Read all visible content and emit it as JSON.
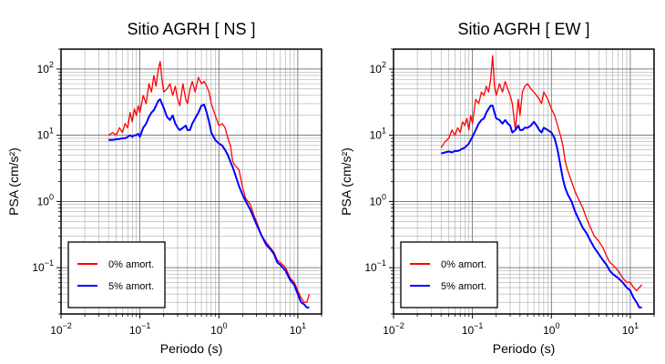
{
  "chart_data": [
    {
      "type": "line",
      "title": "Sitio AGRH [ NS ]",
      "xlabel": "Periodo (s)",
      "ylabel": "PSA (cm/s²)",
      "xscale": "log",
      "yscale": "log",
      "xlim": [
        0.01,
        20
      ],
      "ylim": [
        0.02,
        200
      ],
      "grid": true,
      "legend_position": "bottom-left",
      "x_ticks": [
        {
          "value": 0.01,
          "base": "10",
          "exp": "−2"
        },
        {
          "value": 0.1,
          "base": "10",
          "exp": "−1"
        },
        {
          "value": 1,
          "base": "10",
          "exp": "0"
        },
        {
          "value": 10,
          "base": "10",
          "exp": "1"
        }
      ],
      "y_ticks": [
        {
          "value": 0.1,
          "base": "10",
          "exp": "−1"
        },
        {
          "value": 1,
          "base": "10",
          "exp": "0"
        },
        {
          "value": 10,
          "base": "10",
          "exp": "1"
        },
        {
          "value": 100,
          "base": "10",
          "exp": "2"
        }
      ],
      "series": [
        {
          "name": "0% amort.",
          "color": "#ff0000",
          "x": [
            0.04,
            0.045,
            0.05,
            0.055,
            0.06,
            0.065,
            0.07,
            0.075,
            0.08,
            0.085,
            0.09,
            0.095,
            0.1,
            0.11,
            0.12,
            0.13,
            0.14,
            0.15,
            0.16,
            0.17,
            0.18,
            0.19,
            0.2,
            0.22,
            0.24,
            0.26,
            0.28,
            0.3,
            0.32,
            0.35,
            0.38,
            0.4,
            0.43,
            0.46,
            0.5,
            0.55,
            0.6,
            0.65,
            0.7,
            0.75,
            0.8,
            0.9,
            1.0,
            1.1,
            1.2,
            1.3,
            1.4,
            1.5,
            1.6,
            1.8,
            2.0,
            2.2,
            2.5,
            2.8,
            3.0,
            3.5,
            4.0,
            4.5,
            5.0,
            5.5,
            6.0,
            7.0,
            8.0,
            9.0,
            10.0,
            11.0,
            12.0,
            13.0,
            14.0
          ],
          "y": [
            10,
            11,
            10,
            13,
            11,
            15,
            13,
            22,
            16,
            25,
            20,
            28,
            22,
            40,
            30,
            60,
            45,
            80,
            55,
            95,
            130,
            70,
            45,
            50,
            60,
            40,
            55,
            35,
            28,
            60,
            35,
            30,
            50,
            65,
            45,
            75,
            60,
            65,
            55,
            45,
            30,
            20,
            14,
            15,
            13,
            9,
            7,
            4,
            3.5,
            3,
            1.6,
            1.1,
            0.9,
            0.6,
            0.5,
            0.3,
            0.24,
            0.2,
            0.17,
            0.13,
            0.12,
            0.1,
            0.07,
            0.06,
            0.045,
            0.035,
            0.03,
            0.03,
            0.04
          ]
        },
        {
          "name": "5% amort.",
          "color": "#0000ff",
          "x": [
            0.04,
            0.045,
            0.05,
            0.055,
            0.06,
            0.065,
            0.07,
            0.075,
            0.08,
            0.085,
            0.09,
            0.095,
            0.1,
            0.11,
            0.12,
            0.13,
            0.14,
            0.15,
            0.16,
            0.17,
            0.18,
            0.19,
            0.2,
            0.22,
            0.24,
            0.26,
            0.28,
            0.3,
            0.32,
            0.35,
            0.38,
            0.4,
            0.43,
            0.46,
            0.5,
            0.55,
            0.6,
            0.65,
            0.7,
            0.75,
            0.8,
            0.9,
            1.0,
            1.1,
            1.2,
            1.3,
            1.4,
            1.5,
            1.6,
            1.8,
            2.0,
            2.2,
            2.5,
            2.8,
            3.0,
            3.5,
            4.0,
            4.5,
            5.0,
            5.5,
            6.0,
            7.0,
            8.0,
            9.0,
            10.0,
            11.0,
            12.0,
            13.0,
            14.0
          ],
          "y": [
            8.5,
            8.5,
            8.7,
            8.8,
            9,
            9,
            9.5,
            10,
            9.5,
            10,
            10,
            10.5,
            9.5,
            13,
            15,
            19,
            22,
            24,
            28,
            33,
            35,
            30,
            26,
            19,
            17,
            20,
            15,
            13,
            12,
            13,
            14,
            12,
            12,
            15,
            18,
            22,
            28,
            29,
            22,
            16,
            11,
            8.5,
            7.5,
            7,
            6,
            5,
            4,
            3.3,
            2.6,
            1.7,
            1.25,
            1.0,
            0.75,
            0.55,
            0.45,
            0.3,
            0.22,
            0.19,
            0.16,
            0.12,
            0.11,
            0.09,
            0.065,
            0.055,
            0.04,
            0.03,
            0.028,
            0.025,
            0.025
          ]
        }
      ]
    },
    {
      "type": "line",
      "title": "Sitio AGRH [ EW ]",
      "xlabel": "Periodo (s)",
      "ylabel": "PSA (cm/s²)",
      "xscale": "log",
      "yscale": "log",
      "xlim": [
        0.01,
        20
      ],
      "ylim": [
        0.02,
        200
      ],
      "grid": true,
      "legend_position": "bottom-left",
      "x_ticks": [
        {
          "value": 0.01,
          "base": "10",
          "exp": "−2"
        },
        {
          "value": 0.1,
          "base": "10",
          "exp": "−1"
        },
        {
          "value": 1,
          "base": "10",
          "exp": "0"
        },
        {
          "value": 10,
          "base": "10",
          "exp": "1"
        }
      ],
      "y_ticks": [
        {
          "value": 0.1,
          "base": "10",
          "exp": "−1"
        },
        {
          "value": 1,
          "base": "10",
          "exp": "0"
        },
        {
          "value": 10,
          "base": "10",
          "exp": "1"
        },
        {
          "value": 100,
          "base": "10",
          "exp": "2"
        }
      ],
      "series": [
        {
          "name": "0% amort.",
          "color": "#ff0000",
          "x": [
            0.04,
            0.045,
            0.05,
            0.055,
            0.06,
            0.065,
            0.07,
            0.075,
            0.08,
            0.085,
            0.09,
            0.095,
            0.1,
            0.11,
            0.12,
            0.13,
            0.14,
            0.15,
            0.16,
            0.17,
            0.18,
            0.19,
            0.2,
            0.22,
            0.24,
            0.26,
            0.28,
            0.3,
            0.32,
            0.35,
            0.38,
            0.4,
            0.43,
            0.46,
            0.5,
            0.55,
            0.6,
            0.65,
            0.7,
            0.75,
            0.8,
            0.9,
            1.0,
            1.1,
            1.2,
            1.3,
            1.4,
            1.5,
            1.6,
            1.8,
            2.0,
            2.2,
            2.5,
            2.8,
            3.0,
            3.5,
            4.0,
            4.5,
            5.0,
            5.5,
            6.0,
            7.0,
            8.0,
            9.0,
            10.0,
            11.0,
            12.0,
            13.0,
            14.0
          ],
          "y": [
            6.5,
            8,
            9,
            12,
            10,
            13,
            11,
            16,
            14,
            18,
            12,
            20,
            15,
            35,
            30,
            45,
            40,
            55,
            45,
            70,
            160,
            55,
            40,
            60,
            45,
            65,
            50,
            40,
            30,
            12,
            35,
            20,
            45,
            55,
            60,
            50,
            45,
            40,
            35,
            30,
            45,
            35,
            25,
            20,
            14,
            10,
            7,
            4,
            3,
            2,
            1.4,
            1.1,
            0.8,
            0.55,
            0.45,
            0.3,
            0.25,
            0.2,
            0.15,
            0.12,
            0.11,
            0.09,
            0.07,
            0.06,
            0.06,
            0.05,
            0.045,
            0.05,
            0.055
          ]
        },
        {
          "name": "5% amort.",
          "color": "#0000ff",
          "x": [
            0.04,
            0.045,
            0.05,
            0.055,
            0.06,
            0.065,
            0.07,
            0.075,
            0.08,
            0.085,
            0.09,
            0.095,
            0.1,
            0.11,
            0.12,
            0.13,
            0.14,
            0.15,
            0.16,
            0.17,
            0.18,
            0.19,
            0.2,
            0.22,
            0.24,
            0.26,
            0.28,
            0.3,
            0.32,
            0.35,
            0.38,
            0.4,
            0.43,
            0.46,
            0.5,
            0.55,
            0.6,
            0.65,
            0.7,
            0.75,
            0.8,
            0.9,
            1.0,
            1.1,
            1.2,
            1.3,
            1.4,
            1.5,
            1.6,
            1.8,
            2.0,
            2.2,
            2.5,
            2.8,
            3.0,
            3.5,
            4.0,
            4.5,
            5.0,
            5.5,
            6.0,
            7.0,
            8.0,
            9.0,
            10.0,
            11.0,
            12.0,
            13.0,
            14.0
          ],
          "y": [
            5.3,
            5.5,
            5.7,
            5.5,
            5.8,
            5.8,
            6,
            6.3,
            6.5,
            7,
            7.5,
            8.5,
            9.5,
            12,
            15,
            17,
            18,
            22,
            25,
            28,
            28,
            22,
            18,
            17,
            15,
            17,
            15,
            14,
            11,
            12,
            14,
            12,
            12,
            13,
            13,
            14,
            16,
            14,
            12,
            11,
            13,
            12,
            11,
            9,
            6,
            3.5,
            2.2,
            1.6,
            1.3,
            1.0,
            0.7,
            0.55,
            0.4,
            0.33,
            0.28,
            0.2,
            0.16,
            0.13,
            0.11,
            0.09,
            0.08,
            0.07,
            0.06,
            0.05,
            0.045,
            0.035,
            0.03,
            0.025,
            0.025
          ]
        }
      ]
    }
  ]
}
